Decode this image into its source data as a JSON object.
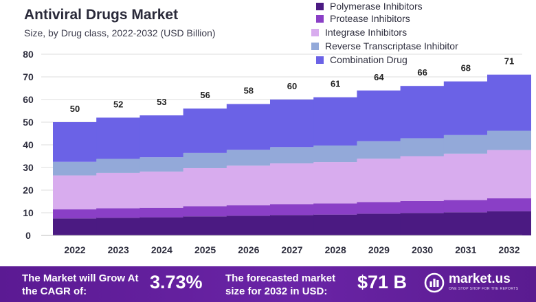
{
  "header": {
    "title": "Antiviral Drugs Market",
    "subtitle": "Size, by Drug class, 2022-2032 (USD Billion)"
  },
  "colors": {
    "polymerase": "#4b1a82",
    "protease": "#8a3fc6",
    "integrase": "#d8acee",
    "reverse_transcriptase": "#93a9d9",
    "combination": "#6b62e6",
    "grid": "#dcdcdc",
    "footer_bg": "#5b1a93"
  },
  "chart_data": {
    "type": "bar",
    "stacked": true,
    "title": "Antiviral Drugs Market",
    "subtitle": "Size, by Drug class, 2022-2032 (USD Billion)",
    "xlabel": "",
    "ylabel": "",
    "ylim": [
      0,
      80
    ],
    "yticks": [
      "0",
      "10",
      "20",
      "30",
      "40",
      "50",
      "60",
      "70",
      "80"
    ],
    "grid": true,
    "legend_position": "top-right",
    "categories": [
      "2022",
      "2023",
      "2024",
      "2025",
      "2026",
      "2027",
      "2028",
      "2029",
      "2030",
      "2031",
      "2032"
    ],
    "totals": [
      50,
      52,
      53,
      56,
      58,
      60,
      61,
      64,
      66,
      68,
      71
    ],
    "total_labels": [
      "50",
      "52",
      "53",
      "56",
      "58",
      "60",
      "61",
      "64",
      "66",
      "68",
      "71"
    ],
    "series": [
      {
        "name": "Polymerase Inhibitors",
        "color_key": "polymerase",
        "values": [
          7.5,
          7.8,
          8.0,
          8.4,
          8.7,
          9.0,
          9.2,
          9.6,
          9.9,
          10.2,
          10.7
        ]
      },
      {
        "name": "Protease Inhibitors",
        "color_key": "protease",
        "values": [
          4.0,
          4.2,
          4.2,
          4.5,
          4.6,
          4.8,
          4.9,
          5.1,
          5.3,
          5.4,
          5.7
        ]
      },
      {
        "name": "Integrase Inhibitors",
        "color_key": "integrase",
        "values": [
          15.0,
          15.6,
          16.0,
          16.8,
          17.5,
          18.0,
          18.3,
          19.2,
          19.8,
          20.5,
          21.3
        ]
      },
      {
        "name": "Reverse Transcriptase Inhibitor",
        "color_key": "reverse_transcriptase",
        "values": [
          6.0,
          6.2,
          6.3,
          6.7,
          7.0,
          7.2,
          7.3,
          7.7,
          7.9,
          8.2,
          8.5
        ]
      },
      {
        "name": "Combination Drug",
        "color_key": "combination",
        "values": [
          17.5,
          18.2,
          18.5,
          19.6,
          20.2,
          21.0,
          21.3,
          22.4,
          23.1,
          23.7,
          24.8
        ]
      }
    ]
  },
  "footer": {
    "cagr_label": "The Market will Grow At the CAGR of:",
    "cagr_value": "3.73%",
    "forecast_label": "The forecasted market size for 2032 in USD:",
    "forecast_value": "$71 B",
    "brand_name": "market.us",
    "brand_tagline": "ONE STOP SHOP FOR THE REPORTS",
    "brand_icon": "market-us-logo-icon"
  }
}
